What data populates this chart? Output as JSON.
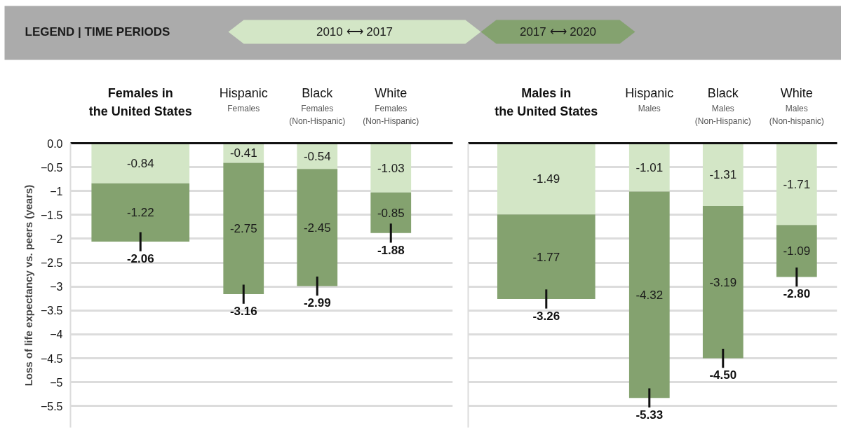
{
  "chart_data": [
    {
      "type": "bar",
      "stacked": true,
      "legend": "top",
      "legend_title": "LEGEND | TIME PERIODS",
      "ylabel": "Loss of life expectancy vs. peers (years)",
      "categories": [
        "Females in\nthe United States",
        "Hispanic\nFemales",
        "Black\nFemales\n(Non-Hispanic)",
        "White\nFemales\n(Non-Hispanic)"
      ],
      "series": [
        {
          "name": "2010 ⟷ 2017",
          "color": "#d3e6c6",
          "values": [
            -0.84,
            -0.41,
            -0.54,
            -1.03
          ]
        },
        {
          "name": "2017 ⟷ 2020",
          "color": "#84a26f",
          "values": [
            -1.22,
            -2.75,
            -2.45,
            -0.85
          ]
        }
      ],
      "totals": [
        "-2.06",
        "-3.16",
        "-2.99",
        "-1.88"
      ],
      "data_labels": true,
      "ylim": [
        -5.95,
        0
      ],
      "yticks": [
        {
          "value": 0,
          "label": "0.0"
        },
        -0.5,
        -1,
        -1.5,
        -2,
        -2.5,
        -3,
        -3.5,
        -4,
        -4.5,
        -5,
        -5.5
      ],
      "grid": "y"
    },
    {
      "type": "bar",
      "stacked": true,
      "tick_labels": "x",
      "categories": [
        "Males in\nthe United States",
        "Hispanic\nMales",
        "Black\nMales\n(Non-Hispanic)",
        "White\nMales\n(Non-hispanic)"
      ],
      "series": [
        {
          "color": "#d3e6c6",
          "values": [
            -1.49,
            -1.01,
            -1.31,
            -1.71
          ]
        },
        {
          "color": "#84a26f",
          "values": [
            -1.77,
            -4.32,
            -3.19,
            -1.09
          ]
        }
      ],
      "totals": [
        "-3.26",
        "-5.33",
        "-4.50",
        "-2.80"
      ],
      "data_labels": true,
      "ylim": [
        -5.95,
        0
      ],
      "yticks": [
        0,
        -0.5,
        -1,
        -1.5,
        -2,
        -2.5,
        -3,
        -3.5,
        -4,
        -4.5,
        -5,
        -5.5
      ],
      "grid": "y"
    }
  ]
}
